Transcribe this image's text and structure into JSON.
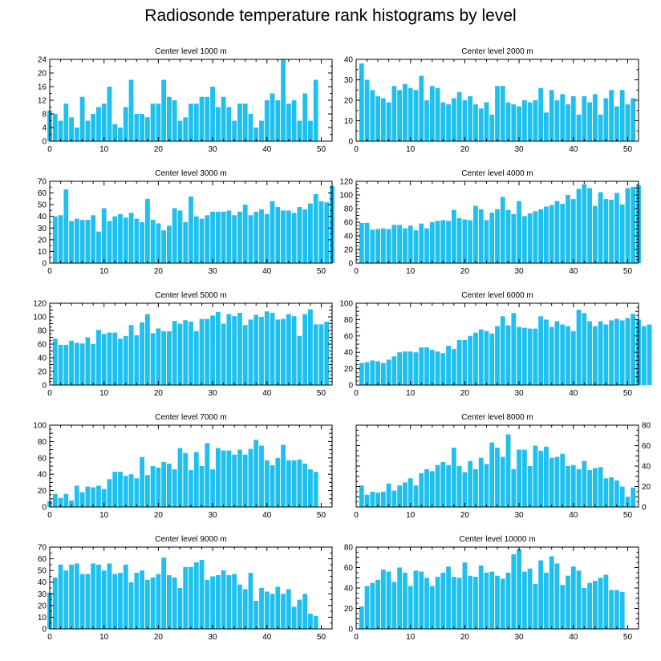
{
  "title": "Radiosonde temperature rank histograms by level",
  "colors": {
    "bar": "#1ec0f0",
    "axis": "#000000"
  },
  "chart_data": [
    {
      "type": "bar",
      "title": "Center level 1000 m",
      "xlabel": "",
      "ylabel": "",
      "xlim": [
        0,
        52
      ],
      "xticks": [
        0,
        10,
        20,
        30,
        40,
        50
      ],
      "ylim": [
        0,
        24
      ],
      "yticks": [
        0,
        4,
        8,
        12,
        16,
        20,
        24
      ],
      "y_axis_side": "left",
      "x_start": 0,
      "values": [
        9,
        8,
        6,
        11,
        7,
        4,
        13,
        6,
        8,
        10,
        11,
        16,
        5,
        4,
        10,
        18,
        8,
        8,
        7,
        11,
        11,
        18,
        13,
        12,
        6,
        7,
        11,
        11,
        13,
        13,
        16,
        10,
        13,
        10,
        6,
        11,
        11,
        8,
        4,
        6,
        12,
        14,
        12,
        24,
        11,
        12,
        6,
        14,
        6,
        18
      ]
    },
    {
      "type": "bar",
      "title": "Center level 2000 m",
      "xlabel": "",
      "ylabel": "",
      "xlim": [
        0,
        52
      ],
      "xticks": [
        0,
        10,
        20,
        30,
        40,
        50
      ],
      "ylim": [
        0,
        40
      ],
      "yticks": [
        0,
        10,
        20,
        30,
        40
      ],
      "y_axis_side": "left",
      "x_start": 1,
      "values": [
        38,
        30,
        25,
        22,
        21,
        19,
        27,
        25,
        28,
        26,
        25,
        32,
        20,
        27,
        26,
        19,
        18,
        21,
        24,
        20,
        22,
        18,
        16,
        19,
        13,
        27,
        27,
        19,
        18,
        17,
        20,
        19,
        20,
        26,
        14,
        25,
        20,
        23,
        18,
        22,
        13,
        22,
        19,
        23,
        13,
        21,
        25,
        17,
        25,
        18,
        21
      ]
    },
    {
      "type": "bar",
      "title": "Center level 3000 m",
      "xlabel": "",
      "ylabel": "",
      "xlim": [
        0,
        52
      ],
      "xticks": [
        0,
        10,
        20,
        30,
        40,
        50
      ],
      "ylim": [
        0,
        70
      ],
      "yticks": [
        0,
        10,
        20,
        30,
        40,
        50,
        60,
        70
      ],
      "y_axis_side": "left",
      "x_start": 1,
      "values": [
        40,
        41,
        63,
        36,
        38,
        37,
        37,
        41,
        27,
        47,
        36,
        40,
        42,
        39,
        43,
        38,
        35,
        55,
        37,
        34,
        28,
        32,
        47,
        45,
        35,
        57,
        40,
        38,
        41,
        44,
        44,
        44,
        45,
        41,
        44,
        50,
        41,
        44,
        46,
        42,
        53,
        48,
        45,
        45,
        43,
        48,
        46,
        51,
        59,
        53,
        52,
        66
      ]
    },
    {
      "type": "bar",
      "title": "Center level 4000 m",
      "xlabel": "",
      "ylabel": "",
      "xlim": [
        0,
        52
      ],
      "xticks": [
        0,
        10,
        20,
        30,
        40,
        50
      ],
      "ylim": [
        0,
        120
      ],
      "yticks": [
        0,
        10,
        20,
        30,
        40,
        50,
        60,
        70,
        80,
        90,
        100,
        110,
        120
      ],
      "ytick_labels": [
        0,
        20,
        40,
        60,
        80,
        100,
        120
      ],
      "y_axis_side": "left",
      "x_start": 1,
      "values": [
        59,
        59,
        49,
        50,
        51,
        50,
        56,
        56,
        51,
        55,
        48,
        58,
        51,
        60,
        62,
        63,
        62,
        78,
        66,
        64,
        63,
        84,
        79,
        63,
        74,
        79,
        97,
        78,
        72,
        91,
        69,
        73,
        76,
        79,
        83,
        85,
        91,
        87,
        100,
        94,
        109,
        116,
        110,
        84,
        104,
        94,
        93,
        103,
        86,
        110,
        112,
        114
      ]
    },
    {
      "type": "bar",
      "title": "Center level 5000 m",
      "xlabel": "",
      "ylabel": "",
      "xlim": [
        0,
        52
      ],
      "xticks": [
        0,
        10,
        20,
        30,
        40,
        50
      ],
      "ylim": [
        0,
        120
      ],
      "yticks": [
        0,
        10,
        20,
        30,
        40,
        50,
        60,
        70,
        80,
        90,
        100,
        110,
        120
      ],
      "ytick_labels": [
        0,
        20,
        40,
        60,
        80,
        100,
        120
      ],
      "y_axis_side": "left",
      "x_start": 1,
      "values": [
        68,
        59,
        59,
        65,
        62,
        61,
        70,
        60,
        81,
        75,
        77,
        77,
        68,
        72,
        88,
        73,
        92,
        104,
        76,
        83,
        79,
        79,
        94,
        90,
        95,
        93,
        79,
        97,
        97,
        102,
        107,
        90,
        104,
        101,
        106,
        88,
        96,
        103,
        100,
        108,
        106,
        96,
        97,
        104,
        101,
        72,
        104,
        111,
        89,
        89,
        93
      ]
    },
    {
      "type": "bar",
      "title": "Center level 6000 m",
      "xlabel": "",
      "ylabel": "",
      "xlim": [
        0,
        52
      ],
      "xticks": [
        0,
        10,
        20,
        30,
        40,
        50
      ],
      "ylim": [
        0,
        100
      ],
      "yticks": [
        0,
        10,
        20,
        30,
        40,
        50,
        60,
        70,
        80,
        90,
        100
      ],
      "ytick_labels": [
        0,
        20,
        40,
        60,
        80,
        100
      ],
      "y_axis_side": "left",
      "x_start": 1,
      "values": [
        27,
        28,
        30,
        29,
        27,
        31,
        35,
        40,
        41,
        41,
        40,
        46,
        46,
        43,
        41,
        39,
        48,
        44,
        55,
        55,
        60,
        64,
        68,
        66,
        63,
        72,
        84,
        73,
        88,
        71,
        70,
        69,
        69,
        84,
        80,
        71,
        78,
        74,
        72,
        66,
        92,
        88,
        78,
        72,
        78,
        74,
        79,
        81,
        79,
        82,
        87,
        80,
        72,
        74
      ]
    },
    {
      "type": "bar",
      "title": "Center level 7000 m",
      "xlabel": "",
      "ylabel": "",
      "xlim": [
        0,
        52
      ],
      "xticks": [
        0,
        10,
        20,
        30,
        40,
        50
      ],
      "ylim": [
        0,
        100
      ],
      "yticks": [
        0,
        10,
        20,
        30,
        40,
        50,
        60,
        70,
        80,
        90,
        100
      ],
      "ytick_labels": [
        0,
        20,
        40,
        60,
        80,
        100
      ],
      "y_axis_side": "left",
      "x_start": 0,
      "values": [
        7,
        16,
        11,
        16,
        8,
        26,
        18,
        25,
        24,
        26,
        22,
        34,
        43,
        43,
        38,
        40,
        35,
        61,
        39,
        50,
        48,
        55,
        53,
        46,
        72,
        66,
        45,
        67,
        50,
        78,
        46,
        72,
        69,
        69,
        64,
        70,
        64,
        71,
        82,
        75,
        57,
        51,
        60,
        76,
        57,
        57,
        58,
        53,
        46,
        43
      ]
    },
    {
      "type": "bar",
      "title": "Center level 8000 m",
      "xlabel": "",
      "ylabel": "",
      "xlim": [
        0,
        52
      ],
      "xticks": [
        0,
        10,
        20,
        30,
        40,
        50
      ],
      "ylim": [
        0,
        80
      ],
      "yticks": [
        0,
        10,
        20,
        30,
        40,
        50,
        60,
        70,
        80
      ],
      "ytick_labels": [
        0,
        20,
        40,
        60,
        80
      ],
      "y_axis_side": "right",
      "x_start": 1,
      "values": [
        21,
        12,
        15,
        14,
        15,
        23,
        16,
        21,
        24,
        28,
        21,
        33,
        37,
        35,
        41,
        44,
        41,
        58,
        40,
        34,
        45,
        37,
        48,
        42,
        63,
        58,
        49,
        71,
        37,
        56,
        56,
        40,
        60,
        55,
        59,
        48,
        49,
        52,
        40,
        41,
        37,
        45,
        36,
        38,
        39,
        28,
        29,
        26,
        20,
        10,
        19
      ]
    },
    {
      "type": "bar",
      "title": "Center level 9000 m",
      "xlabel": "",
      "ylabel": "",
      "xlim": [
        0,
        52
      ],
      "xticks": [
        0,
        10,
        20,
        30,
        40,
        50
      ],
      "ylim": [
        0,
        70
      ],
      "yticks": [
        0,
        10,
        20,
        30,
        40,
        50,
        60,
        70
      ],
      "y_axis_side": "left",
      "x_start": 0,
      "values": [
        31,
        44,
        55,
        50,
        55,
        56,
        47,
        47,
        56,
        55,
        50,
        56,
        47,
        48,
        55,
        40,
        48,
        50,
        42,
        44,
        47,
        61,
        46,
        44,
        35,
        53,
        53,
        57,
        59,
        42,
        45,
        46,
        50,
        46,
        47,
        38,
        34,
        48,
        24,
        35,
        32,
        30,
        36,
        30,
        34,
        19,
        25,
        30,
        13,
        11
      ]
    },
    {
      "type": "bar",
      "title": "Center level 10000 m",
      "xlabel": "",
      "ylabel": "",
      "xlim": [
        0,
        52
      ],
      "xticks": [
        0,
        10,
        20,
        30,
        40,
        50
      ],
      "ylim": [
        0,
        80
      ],
      "yticks": [
        0,
        10,
        20,
        30,
        40,
        50,
        60,
        70,
        80
      ],
      "ytick_labels": [
        0,
        20,
        40,
        60,
        80
      ],
      "y_axis_side": "left",
      "x_start": 1,
      "values": [
        22,
        42,
        45,
        48,
        58,
        56,
        46,
        60,
        55,
        42,
        57,
        56,
        50,
        42,
        51,
        55,
        61,
        51,
        50,
        65,
        52,
        51,
        62,
        55,
        56,
        52,
        49,
        55,
        73,
        78,
        56,
        59,
        44,
        67,
        55,
        71,
        64,
        43,
        52,
        61,
        57,
        40,
        45,
        47,
        50,
        53,
        38,
        38,
        36
      ]
    }
  ]
}
